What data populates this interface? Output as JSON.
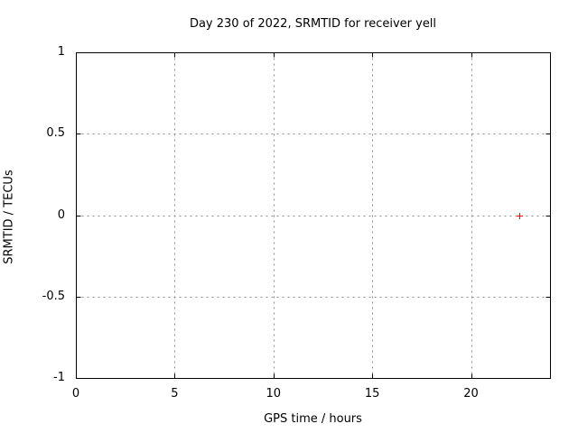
{
  "figure": {
    "background": "#ffffff"
  },
  "chart_data": {
    "type": "scatter",
    "title": "Day 230 of 2022, SRMTID for receiver yell",
    "xlabel": "GPS time / hours",
    "ylabel": "SRMTID / TECUs",
    "xlim": [
      0,
      24
    ],
    "ylim": [
      -1,
      1
    ],
    "xticks": [
      {
        "value": 0,
        "label": "0"
      },
      {
        "value": 5,
        "label": "5"
      },
      {
        "value": 10,
        "label": "10"
      },
      {
        "value": 15,
        "label": "15"
      },
      {
        "value": 20,
        "label": "20"
      }
    ],
    "yticks": [
      {
        "value": -1,
        "label": "-1"
      },
      {
        "value": -0.5,
        "label": "-0.5"
      },
      {
        "value": 0,
        "label": "0"
      },
      {
        "value": 0.5,
        "label": "0.5"
      },
      {
        "value": 1,
        "label": "1"
      }
    ],
    "grid": true,
    "grid_style": "dashed",
    "legend_position": "none",
    "series": [
      {
        "name": "SRMTID",
        "marker": "plus",
        "marker_size": 7,
        "color": "#ff0000",
        "points": [
          {
            "x": 22.45,
            "y": 0.0
          }
        ]
      }
    ],
    "colors": {
      "border": "#000000",
      "grid": "#8c8c8c",
      "text": "#000000",
      "background": "#ffffff",
      "point": "#ff0000"
    }
  }
}
